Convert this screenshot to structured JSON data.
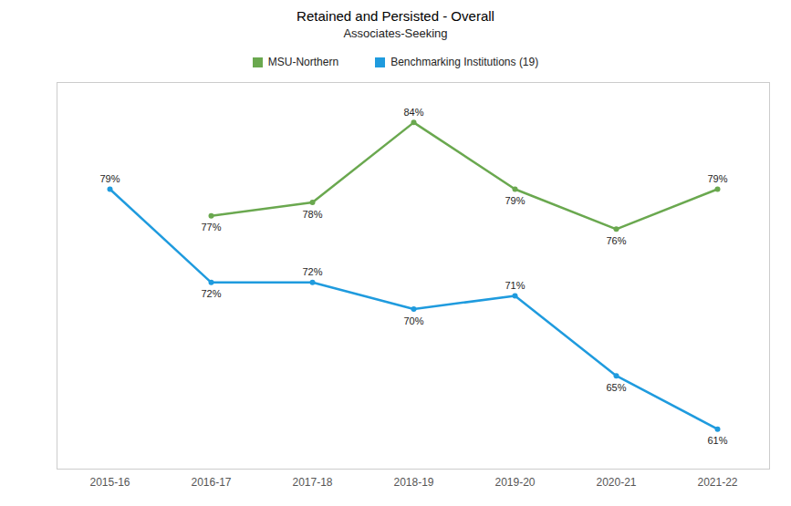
{
  "chart_data": {
    "type": "line",
    "title": "Retained and Persisted - Overall",
    "subtitle": "Associates-Seeking",
    "categories": [
      "2015-16",
      "2016-17",
      "2017-18",
      "2018-19",
      "2019-20",
      "2020-21",
      "2021-22"
    ],
    "series": [
      {
        "name": "MSU-Northern",
        "color": "#6aa84f",
        "values": [
          null,
          77,
          78,
          84,
          79,
          76,
          79
        ],
        "value_labels": [
          null,
          "77%",
          "78%",
          "84%",
          "79%",
          "76%",
          "79%"
        ]
      },
      {
        "name": "Benchmarking Institutions (19)",
        "color": "#1f9bde",
        "values": [
          79,
          72,
          72,
          70,
          71,
          65,
          61
        ],
        "value_labels": [
          "79%",
          "72%",
          "72%",
          "70%",
          "71%",
          "65%",
          "61%"
        ]
      }
    ],
    "ylim": [
      58,
      87
    ],
    "tick_labels": "x",
    "data_labels": true,
    "marker": "circle",
    "grid": false,
    "legend": "top"
  }
}
